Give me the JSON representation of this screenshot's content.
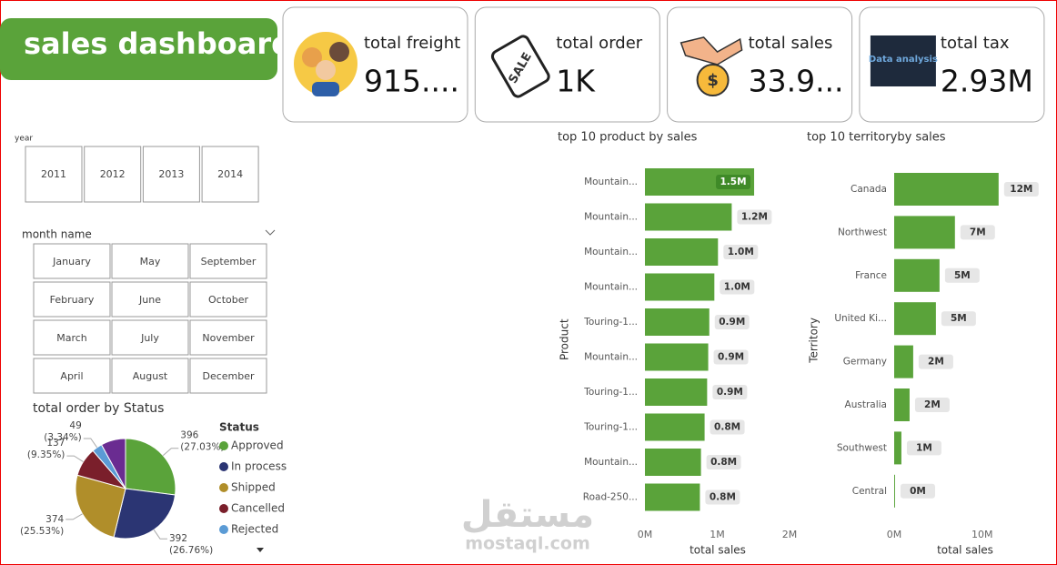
{
  "header": {
    "title": "sales dashboard"
  },
  "kpis": [
    {
      "title": "total freight",
      "value": "915....",
      "icon_text": null
    },
    {
      "title": "total order",
      "value": "1K",
      "icon_text": "SALE"
    },
    {
      "title": "total sales",
      "value": "33.9...",
      "icon_text": "$"
    },
    {
      "title": "total tax",
      "value": "2.93M",
      "icon_text": "Data analysis"
    }
  ],
  "slicers": {
    "year": {
      "title": "year",
      "options": [
        "2011",
        "2012",
        "2013",
        "2014"
      ]
    },
    "month": {
      "title": "month name",
      "options": [
        "January",
        "February",
        "March",
        "April",
        "May",
        "June",
        "July",
        "August",
        "September",
        "October",
        "November",
        "December"
      ]
    }
  },
  "watermark": {
    "arabic": "مستقل",
    "latin": "mostaql.com"
  },
  "chart_data": [
    {
      "type": "pie",
      "title": "total order by Status",
      "legend_title": "Status",
      "categories": [
        "Approved",
        "In process",
        "Shipped",
        "Cancelled",
        "Rejected",
        null
      ],
      "values": [
        396,
        392,
        374,
        137,
        49,
        117
      ],
      "percent_labels": [
        "(27.03%)",
        "(26.76%)",
        "(25.53%)",
        "(9.35%)",
        "(3.34%)",
        null
      ],
      "colors": [
        "#5aa33a",
        "#2b3573",
        "#b08e2a",
        "#7a1f2b",
        "#5b9bd5",
        "#6a2c91"
      ]
    },
    {
      "type": "bar",
      "orientation": "horizontal",
      "title": "top 10 product by sales",
      "x_label": "total sales",
      "y_label": "Product",
      "color": "#5aa33a",
      "categories": [
        "Mountain...",
        "Mountain...",
        "Mountain...",
        "Mountain...",
        "Touring-1...",
        "Mountain...",
        "Touring-1...",
        "Touring-1...",
        "Mountain...",
        "Road-250..."
      ],
      "values": [
        1510000,
        1200000,
        1010000,
        960000,
        890000,
        875000,
        860000,
        825000,
        775000,
        760000
      ],
      "value_labels": [
        "1.5M",
        "1.2M",
        "1.0M",
        "1.0M",
        "0.9M",
        "0.9M",
        "0.9M",
        "0.8M",
        "0.8M",
        "0.8M"
      ],
      "xlim": [
        0,
        2000000
      ],
      "xticks": [
        {
          "value": 0,
          "label": "0M"
        },
        {
          "value": 1000000,
          "label": "1M"
        },
        {
          "value": 2000000,
          "label": "2M"
        }
      ]
    },
    {
      "type": "bar",
      "orientation": "horizontal",
      "title": "top 10 territoryby sales",
      "x_label": "total sales",
      "y_label": "Territory",
      "color": "#5aa33a",
      "categories": [
        "Canada",
        "Northwest",
        "France",
        "United Ki...",
        "Germany",
        "Australia",
        "Southwest",
        "Central"
      ],
      "values": [
        11860000,
        6900000,
        5150000,
        4740000,
        2160000,
        1750000,
        820000,
        100000
      ],
      "value_labels": [
        "12M",
        "7M",
        "5M",
        "5M",
        "2M",
        "2M",
        "1M",
        "0M"
      ],
      "xlim": [
        0,
        12500000
      ],
      "xticks": [
        {
          "value": 0,
          "label": "0M"
        },
        {
          "value": 10000000,
          "label": "10M"
        }
      ]
    }
  ]
}
